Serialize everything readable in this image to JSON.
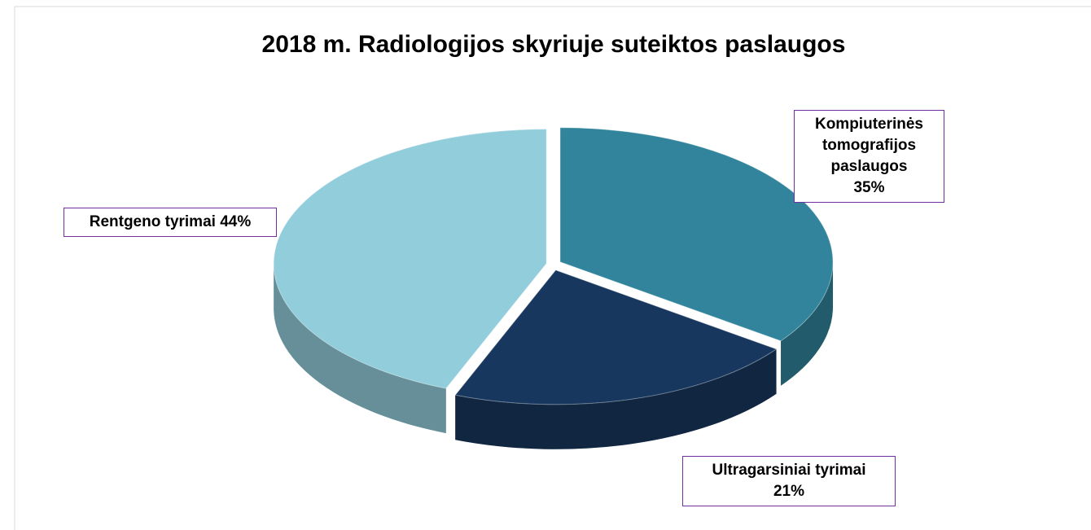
{
  "chart_data": {
    "type": "pie3d",
    "title": "2018 m. Radiologijos skyriuje suteiktos paslaugos",
    "categories": [
      "Kompiuterinės tomografijos paslaugos",
      "Ultragarsiniai tyrimai",
      "Rentgeno tyrimai"
    ],
    "values": [
      35,
      21,
      44
    ],
    "value_labels": [
      "35%",
      "21%",
      "44%"
    ],
    "colors": [
      "#31849b",
      "#17375e",
      "#92cddc"
    ]
  }
}
